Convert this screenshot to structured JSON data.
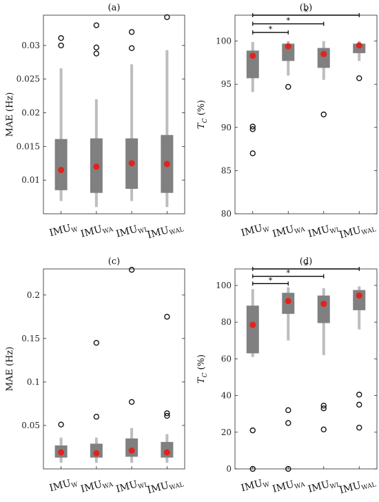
{
  "chart_data": [
    {
      "type": "box",
      "title": "(a)",
      "ylabel": "MAE (Hz)",
      "ylim": [
        0.005,
        0.0345
      ],
      "yticks": [
        0.01,
        0.015,
        0.02,
        0.025,
        0.03
      ],
      "ytick_labels": [
        "0.01",
        "0.015",
        "0.02",
        "0.025",
        "0.03"
      ],
      "categories": [
        "IMU_W",
        "IMU_WA",
        "IMU_WL",
        "IMU_WAL"
      ],
      "category_labels": [
        {
          "main": "IMU",
          "sub": "W"
        },
        {
          "main": "IMU",
          "sub": "WA"
        },
        {
          "main": "IMU",
          "sub": "WL"
        },
        {
          "main": "IMU",
          "sub": "WAL"
        }
      ],
      "boxes": [
        {
          "whisker_low": 0.0069,
          "q1": 0.0085,
          "q3": 0.0161,
          "whisker_high": 0.0266,
          "mean": 0.0115,
          "outliers": [
            0.03,
            0.0311
          ]
        },
        {
          "whisker_low": 0.006,
          "q1": 0.0081,
          "q3": 0.0162,
          "whisker_high": 0.022,
          "mean": 0.012,
          "outliers": [
            0.0288,
            0.0297,
            0.033
          ]
        },
        {
          "whisker_low": 0.0069,
          "q1": 0.0087,
          "q3": 0.0162,
          "whisker_high": 0.0272,
          "mean": 0.0125,
          "outliers": [
            0.0296,
            0.032
          ]
        },
        {
          "whisker_low": 0.006,
          "q1": 0.0081,
          "q3": 0.0167,
          "whisker_high": 0.0293,
          "mean": 0.0124,
          "outliers": [
            0.0342
          ]
        }
      ],
      "significance": []
    },
    {
      "type": "box",
      "title": "(b)",
      "ylabel": "T_C (%)",
      "ylim": [
        80,
        103
      ],
      "yticks": [
        80,
        85,
        90,
        95,
        100
      ],
      "ytick_labels": [
        "80",
        "85",
        "90",
        "95",
        "100"
      ],
      "categories": [
        "IMU_W",
        "IMU_WA",
        "IMU_WL",
        "IMU_WAL"
      ],
      "category_labels": [
        {
          "main": "IMU",
          "sub": "W"
        },
        {
          "main": "IMU",
          "sub": "WA"
        },
        {
          "main": "IMU",
          "sub": "WL"
        },
        {
          "main": "IMU",
          "sub": "WAL"
        }
      ],
      "boxes": [
        {
          "whisker_low": 94.1,
          "q1": 95.7,
          "q3": 98.9,
          "whisker_high": 99.9,
          "mean": 98.3,
          "outliers": [
            87.0,
            89.8,
            90.1
          ]
        },
        {
          "whisker_low": 96.0,
          "q1": 97.7,
          "q3": 99.7,
          "whisker_high": 100.0,
          "mean": 99.4,
          "outliers": [
            94.7
          ]
        },
        {
          "whisker_low": 95.5,
          "q1": 96.9,
          "q3": 99.2,
          "whisker_high": 100.0,
          "mean": 98.5,
          "outliers": [
            91.5
          ]
        },
        {
          "whisker_low": 97.7,
          "q1": 98.6,
          "q3": 99.7,
          "whisker_high": 100.0,
          "mean": 99.5,
          "outliers": [
            95.7
          ]
        }
      ],
      "significance": [
        {
          "from": 0,
          "to": 1,
          "level": 101.0
        },
        {
          "from": 0,
          "to": 2,
          "level": 102.0
        },
        {
          "from": 0,
          "to": 3,
          "level": 103.0
        }
      ],
      "significance_marker": "*"
    },
    {
      "type": "box",
      "title": "(c)",
      "ylabel": "MAE (Hz)",
      "ylim": [
        0.0,
        0.23
      ],
      "yticks": [
        0.05,
        0.1,
        0.15,
        0.2
      ],
      "ytick_labels": [
        "0.05",
        "0.1",
        "0.15",
        "0.2"
      ],
      "categories": [
        "IMU_W",
        "IMU_WA",
        "IMU_WL",
        "IMU_WAL"
      ],
      "category_labels": [
        {
          "main": "IMU",
          "sub": "W"
        },
        {
          "main": "IMU",
          "sub": "WA"
        },
        {
          "main": "IMU",
          "sub": "WL"
        },
        {
          "main": "IMU",
          "sub": "WAL"
        }
      ],
      "boxes": [
        {
          "whisker_low": 0.007,
          "q1": 0.013,
          "q3": 0.027,
          "whisker_high": 0.036,
          "mean": 0.019,
          "outliers": [
            0.051
          ]
        },
        {
          "whisker_low": 0.007,
          "q1": 0.013,
          "q3": 0.029,
          "whisker_high": 0.036,
          "mean": 0.018,
          "outliers": [
            0.06,
            0.145
          ]
        },
        {
          "whisker_low": 0.007,
          "q1": 0.014,
          "q3": 0.035,
          "whisker_high": 0.047,
          "mean": 0.021,
          "outliers": [
            0.077,
            0.229
          ]
        },
        {
          "whisker_low": 0.007,
          "q1": 0.013,
          "q3": 0.031,
          "whisker_high": 0.04,
          "mean": 0.019,
          "outliers": [
            0.061,
            0.064,
            0.175
          ]
        }
      ],
      "significance": []
    },
    {
      "type": "box",
      "title": "(d)",
      "ylabel": "T_C (%)",
      "ylim": [
        0,
        109
      ],
      "yticks": [
        0,
        20,
        40,
        60,
        80,
        100
      ],
      "ytick_labels": [
        "0",
        "20",
        "40",
        "60",
        "80",
        "100"
      ],
      "categories": [
        "IMU_W",
        "IMU_WA",
        "IMU_WL",
        "IMU_WAL"
      ],
      "category_labels": [
        {
          "main": "IMU",
          "sub": "W"
        },
        {
          "main": "IMU",
          "sub": "WA"
        },
        {
          "main": "IMU",
          "sub": "WL"
        },
        {
          "main": "IMU",
          "sub": "WAL"
        }
      ],
      "boxes": [
        {
          "whisker_low": 61.0,
          "q1": 63.0,
          "q3": 89.0,
          "whisker_high": 98.0,
          "mean": 78.5,
          "outliers": [
            0.0,
            21.0
          ]
        },
        {
          "whisker_low": 70.0,
          "q1": 84.5,
          "q3": 96.0,
          "whisker_high": 99.0,
          "mean": 91.5,
          "outliers": [
            0.0,
            25.0,
            32.0
          ]
        },
        {
          "whisker_low": 62.0,
          "q1": 79.5,
          "q3": 94.5,
          "whisker_high": 98.5,
          "mean": 90.0,
          "outliers": [
            21.5,
            33.0,
            34.5
          ]
        },
        {
          "whisker_low": 76.0,
          "q1": 86.5,
          "q3": 97.5,
          "whisker_high": 99.5,
          "mean": 94.5,
          "outliers": [
            22.5,
            35.0,
            40.5
          ]
        }
      ],
      "significance": [
        {
          "from": 0,
          "to": 1,
          "level": 101.0
        },
        {
          "from": 0,
          "to": 2,
          "level": 105.0
        },
        {
          "from": 0,
          "to": 3,
          "level": 109.0
        }
      ],
      "significance_marker": "*"
    }
  ],
  "colors": {
    "box": "#808080",
    "whisker": "#bdbdbd",
    "mean": "#e2231a",
    "outlier_stroke": "#111111",
    "significance": "#000000"
  }
}
